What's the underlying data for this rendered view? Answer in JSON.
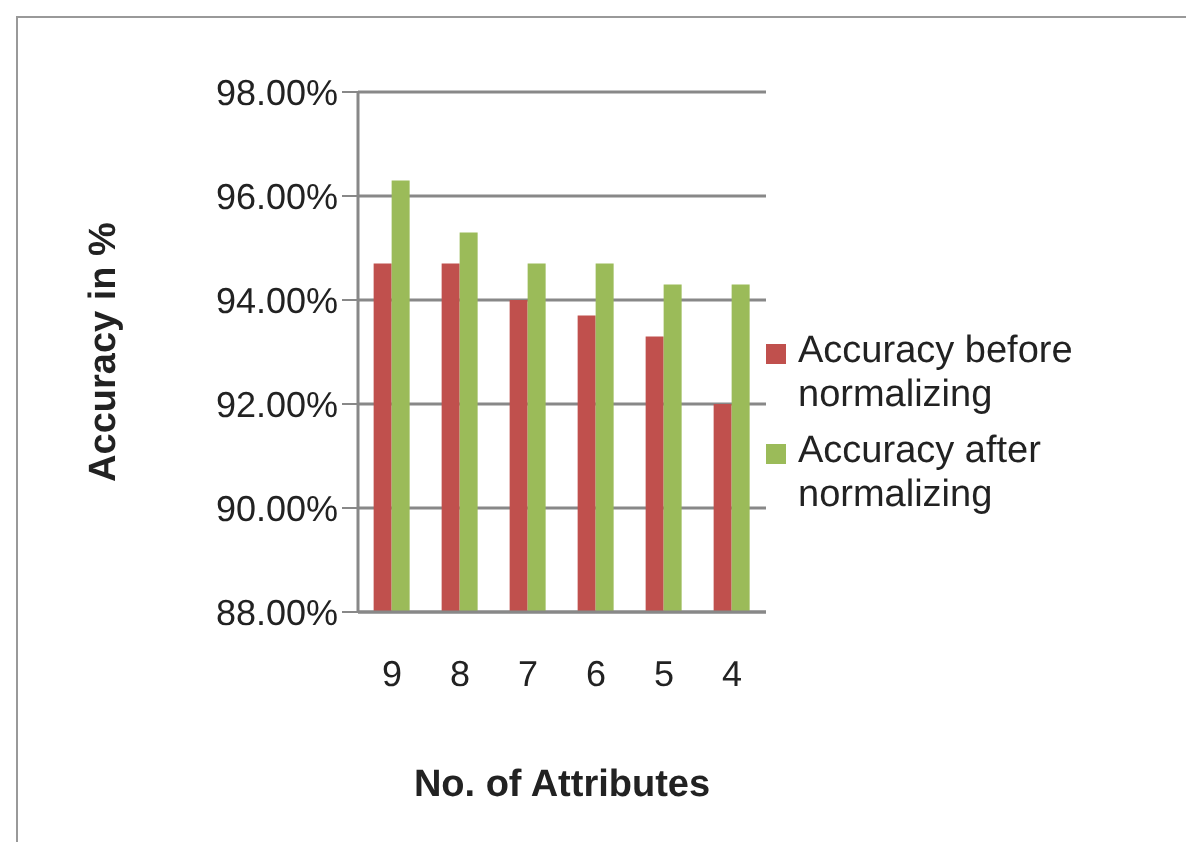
{
  "chart_data": {
    "type": "bar",
    "xlabel": "No. of Attributes",
    "ylabel": "Accuracy in %",
    "categories": [
      "9",
      "8",
      "7",
      "6",
      "5",
      "4"
    ],
    "series": [
      {
        "name": "Accuracy before normalizing",
        "color": "#c0504d",
        "values": [
          94.7,
          94.7,
          94.0,
          93.7,
          93.3,
          92.0
        ]
      },
      {
        "name": "Accuracy after normalizing",
        "color": "#9bbb59",
        "values": [
          96.3,
          95.3,
          94.7,
          94.7,
          94.3,
          94.3
        ]
      }
    ],
    "ylim": [
      88,
      98
    ],
    "yticks": [
      {
        "value": 88,
        "label": "88.00%"
      },
      {
        "value": 90,
        "label": "90.00%"
      },
      {
        "value": 92,
        "label": "92.00%"
      },
      {
        "value": 94,
        "label": "94.00%"
      },
      {
        "value": 96,
        "label": "96.00%"
      },
      {
        "value": 98,
        "label": "98.00%"
      }
    ],
    "grid": "y",
    "legend": "right"
  }
}
